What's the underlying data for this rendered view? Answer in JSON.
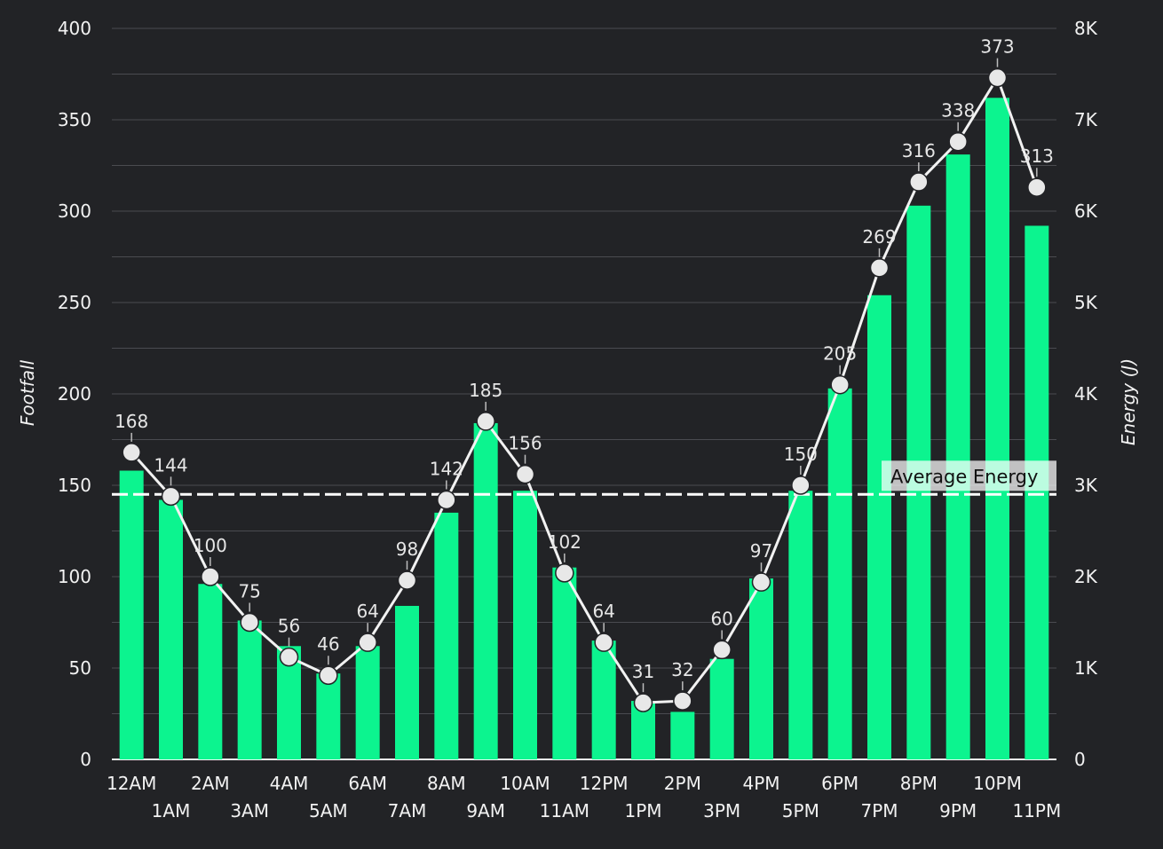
{
  "chart_data": {
    "type": "bar",
    "categories": [
      "12AM",
      "1AM",
      "2AM",
      "3AM",
      "4AM",
      "5AM",
      "6AM",
      "7AM",
      "8AM",
      "9AM",
      "10AM",
      "11AM",
      "12PM",
      "1PM",
      "2PM",
      "3PM",
      "4PM",
      "5PM",
      "6PM",
      "7PM",
      "8PM",
      "9PM",
      "10PM",
      "11PM"
    ],
    "ylabel": "Footfall",
    "y2label": "Energy (J)",
    "ylim": [
      0,
      400
    ],
    "y2lim": [
      0,
      8000
    ],
    "yticks": [
      "0",
      "50",
      "100",
      "150",
      "200",
      "250",
      "300",
      "350",
      "400"
    ],
    "y2ticks": [
      "0",
      "1K",
      "2K",
      "3K",
      "4K",
      "5K",
      "6K",
      "7K",
      "8K"
    ],
    "grid": true,
    "series": [
      {
        "type": "bar",
        "axis": "right",
        "color": "#0cf48f",
        "values": [
          3160,
          2840,
          1920,
          1520,
          1240,
          940,
          1240,
          1680,
          2700,
          3680,
          2940,
          2100,
          1300,
          640,
          520,
          1100,
          1980,
          2940,
          4060,
          5080,
          6060,
          6620,
          7240,
          5840
        ]
      },
      {
        "type": "line",
        "axis": "left",
        "color": "#f2f2f2",
        "values": [
          168,
          144,
          100,
          75,
          56,
          46,
          64,
          98,
          142,
          185,
          156,
          102,
          64,
          31,
          32,
          60,
          97,
          150,
          205,
          269,
          316,
          338,
          373,
          313
        ],
        "labels": [
          "168",
          "144",
          "100",
          "75",
          "56",
          "46",
          "64",
          "98",
          "142",
          "185",
          "156",
          "102",
          "64",
          "31",
          "32",
          "60",
          "97",
          "150",
          "205",
          "269",
          "316",
          "338",
          "373",
          "313"
        ]
      }
    ],
    "reference_line": {
      "label": "Average Energy",
      "axis": "right",
      "value": 2900,
      "color": "#ffffff"
    }
  }
}
